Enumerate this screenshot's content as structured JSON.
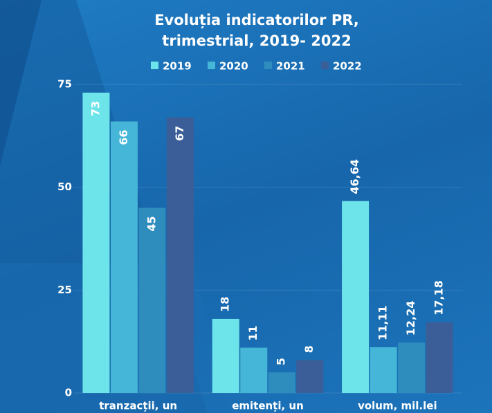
{
  "chart_data": {
    "type": "bar",
    "title": "Evoluția indicatorilor PR, trimestrial, 2019- 2022",
    "categories": [
      "tranzacții, un",
      "emitenți, un",
      "volum, mil.lei"
    ],
    "series": [
      {
        "name": "2019",
        "color": "#6de4ea",
        "values": [
          73,
          18,
          46.64
        ],
        "value_labels": [
          "73",
          "18",
          "46,64"
        ]
      },
      {
        "name": "2020",
        "color": "#45b6d7",
        "values": [
          66,
          11,
          11.11
        ],
        "value_labels": [
          "66",
          "11",
          "11,11"
        ]
      },
      {
        "name": "2021",
        "color": "#2e8dbd",
        "values": [
          45,
          5,
          12.24
        ],
        "value_labels": [
          "45",
          "5",
          "12,24"
        ]
      },
      {
        "name": "2022",
        "color": "#3b5e98",
        "values": [
          67,
          8,
          17.18
        ],
        "value_labels": [
          "67",
          "8",
          "17,18"
        ]
      }
    ],
    "ylim": [
      0,
      75
    ],
    "yticks": [
      0,
      25,
      50,
      75
    ],
    "grid": true
  }
}
